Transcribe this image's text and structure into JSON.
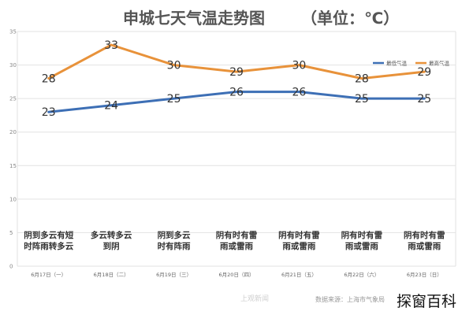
{
  "chart_data": {
    "type": "line",
    "title": "申城七天气温走势图",
    "unit_label": "（单位：℃）",
    "categories": [
      "6月17日（一）",
      "6月18日（二）",
      "6月19日（三）",
      "6月20日（四）",
      "6月21日（五）",
      "6月22日（六）",
      "6月23日（日）"
    ],
    "weather": [
      [
        "阴到多云有短",
        "时阵雨转多云"
      ],
      [
        "多云转多云",
        "到阴"
      ],
      [
        "阴到多云",
        "时有阵雨"
      ],
      [
        "阴有时有雷",
        "雨或雷雨"
      ],
      [
        "阴有时有雷",
        "雨或雷雨"
      ],
      [
        "阴有时有雷",
        "雨或雷雨"
      ],
      [
        "阴有时有雷",
        "雨或雷雨"
      ]
    ],
    "series": [
      {
        "name": "最低气温",
        "values": [
          23,
          24,
          25,
          26,
          26,
          25,
          25
        ],
        "color": "#3d6fb5"
      },
      {
        "name": "最高气温",
        "values": [
          28,
          33,
          30,
          29,
          30,
          28,
          29
        ],
        "color": "#e8923a"
      }
    ],
    "yticks": [
      0,
      5,
      10,
      15,
      20,
      25,
      30,
      35
    ],
    "ylim": [
      0,
      35
    ],
    "grid": true,
    "legend_position": "top-right",
    "source_text": "数据来源：上海市气象局",
    "watermark_text": "上观新闻"
  },
  "brand_text": "探窗百科"
}
